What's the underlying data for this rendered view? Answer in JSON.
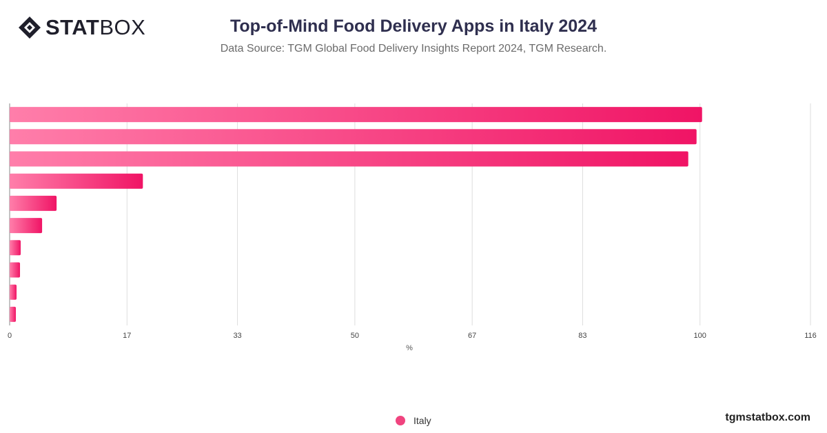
{
  "header": {
    "logo_bold": "STAT",
    "logo_light": "BOX",
    "title": "Top-of-Mind Food Delivery Apps in Italy 2024",
    "subtitle": "Data Source: TGM Global Food Delivery Insights Report 2024, TGM Research."
  },
  "footer": {
    "site": "tgmstatbox.com"
  },
  "colors": {
    "bar_start": "#ff7eaa",
    "bar_end": "#f01465",
    "grid": "#dddddd"
  },
  "chart_data": {
    "type": "bar",
    "orientation": "horizontal",
    "xlabel": "%",
    "xlim": [
      0,
      116
    ],
    "ticks": [
      "0",
      "17",
      "33",
      "50",
      "67",
      "83",
      "100",
      "116"
    ],
    "tick_values": [
      0,
      17,
      33,
      50,
      67,
      83,
      100,
      116
    ],
    "grid": true,
    "legend_position": "bottom",
    "series": [
      {
        "name": "Italy",
        "values": [
          100.3,
          99.5,
          98.3,
          19.3,
          6.8,
          4.7,
          1.6,
          1.5,
          1.0,
          0.9
        ]
      }
    ]
  }
}
